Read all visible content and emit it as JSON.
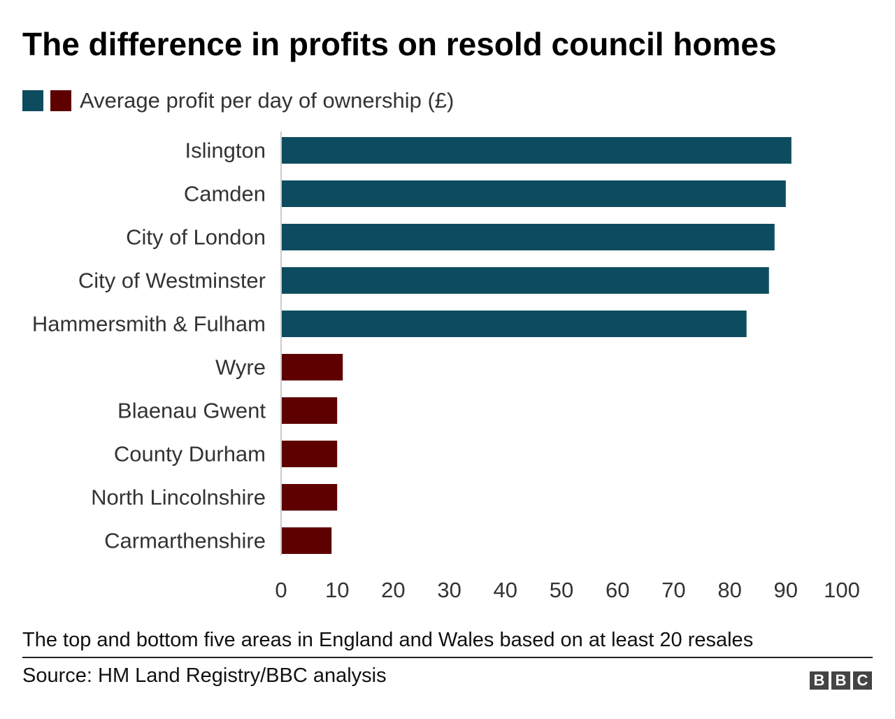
{
  "colors": {
    "top": "#0d4c5e",
    "bottom": "#5e0000",
    "axis": "#cccccc",
    "text": "#222222"
  },
  "chart_data": {
    "type": "bar",
    "orientation": "horizontal",
    "title": "The difference in profits on resold council homes",
    "legend": {
      "label": "Average profit per day of ownership (£)",
      "placement": "top-left"
    },
    "categories": [
      "Islington",
      "Camden",
      "City of London",
      "City of Westminster",
      "Hammersmith & Fulham",
      "Wyre",
      "Blaenau Gwent",
      "County Durham",
      "North Lincolnshire",
      "Carmarthenshire"
    ],
    "values": [
      91,
      90,
      88,
      87,
      83,
      11,
      10,
      10,
      10,
      9
    ],
    "groups": [
      "top",
      "top",
      "top",
      "top",
      "top",
      "bottom",
      "bottom",
      "bottom",
      "bottom",
      "bottom"
    ],
    "xlim": [
      0,
      100
    ],
    "xticks": [
      0,
      10,
      20,
      30,
      40,
      50,
      60,
      70,
      80,
      90,
      100
    ],
    "grid": false
  },
  "footnote": "The top and bottom five areas in England and Wales based on at least 20 resales",
  "source": "Source: HM Land Registry/BBC analysis",
  "logo": {
    "letters": [
      "B",
      "B",
      "C"
    ]
  }
}
